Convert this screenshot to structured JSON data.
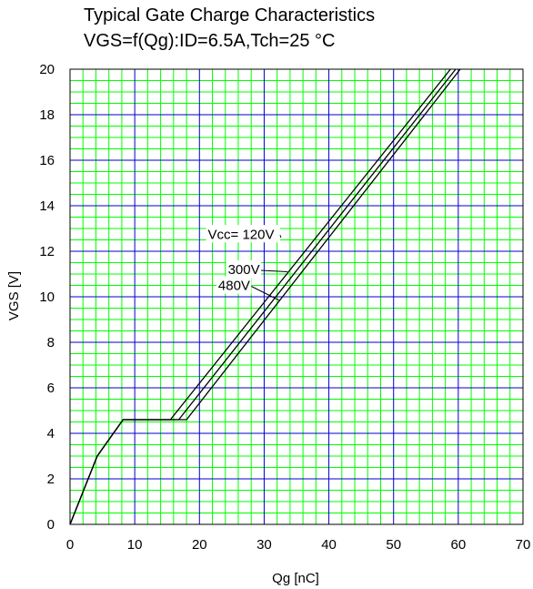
{
  "title_line1": "Typical Gate Charge Characteristics",
  "title_line2": "VGS=f(Qg):ID=6.5A,Tch=25 °C",
  "chart_data": {
    "type": "line",
    "title": "Typical Gate Charge Characteristics",
    "subtitle": "VGS=f(Qg):ID=6.5A,Tch=25 °C",
    "xlabel": "Qg [nC]",
    "ylabel": "VGS [V]",
    "xlim": [
      0,
      70
    ],
    "ylim": [
      0,
      20
    ],
    "x_ticks": [
      0,
      10,
      20,
      30,
      40,
      50,
      60,
      70
    ],
    "y_ticks": [
      0,
      2,
      4,
      6,
      8,
      10,
      12,
      14,
      16,
      18,
      20
    ],
    "grid": true,
    "colors": {
      "major_grid": "#0000cc",
      "minor_grid": "#00ff00",
      "line": "#000000",
      "background": "#ffffff"
    },
    "series": [
      {
        "name": "Vcc= 120V",
        "points": [
          [
            0,
            0
          ],
          [
            4.2,
            3
          ],
          [
            8.2,
            4.6
          ],
          [
            15.5,
            4.6
          ],
          [
            58.8,
            20
          ]
        ]
      },
      {
        "name": "300V",
        "points": [
          [
            0,
            0
          ],
          [
            4.2,
            3
          ],
          [
            8.2,
            4.6
          ],
          [
            16.8,
            4.6
          ],
          [
            59.6,
            20
          ]
        ]
      },
      {
        "name": "480V",
        "points": [
          [
            0,
            0
          ],
          [
            4.2,
            3
          ],
          [
            8.2,
            4.6
          ],
          [
            18,
            4.6
          ],
          [
            60.3,
            20
          ]
        ]
      }
    ],
    "annotations": [
      {
        "text": "Vcc= 120V",
        "x": 21.3,
        "y": 12.55,
        "arrow_to": [
          32.6,
          12.6
        ]
      },
      {
        "text": "300V",
        "x": 24.4,
        "y": 11.0,
        "arrow_to": [
          33.6,
          11.1
        ]
      },
      {
        "text": "480V",
        "x": 22.9,
        "y": 10.3,
        "arrow_to": [
          32.3,
          9.85
        ]
      }
    ]
  }
}
